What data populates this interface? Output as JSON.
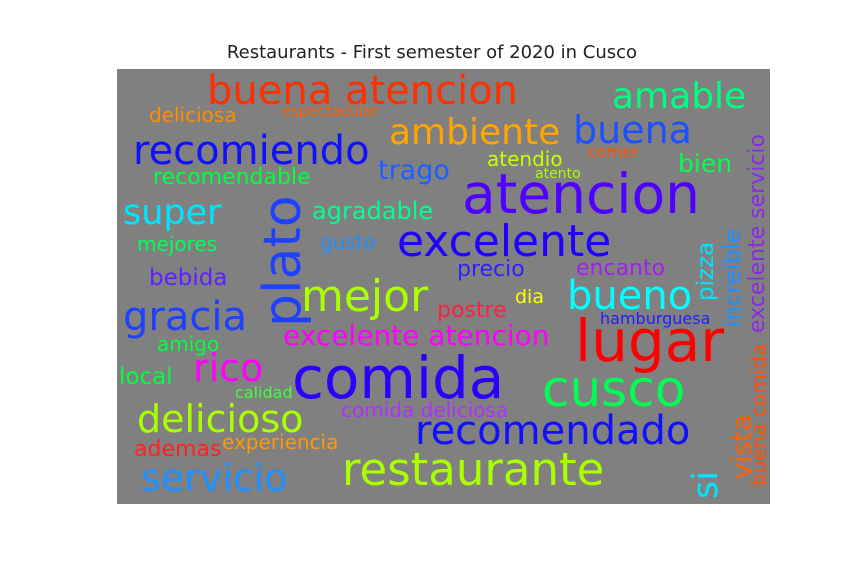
{
  "title": "Restaurants - First semester of 2020 in Cusco",
  "cloud": {
    "background": "#808080",
    "words": [
      {
        "text": "buena atencion",
        "color": "#ff3000",
        "orientation": "horizontal"
      },
      {
        "text": "amable",
        "color": "#00ff80",
        "orientation": "horizontal"
      },
      {
        "text": "deliciosa",
        "color": "#ff8c00",
        "orientation": "horizontal"
      },
      {
        "text": "espectacular",
        "color": "#ff6000",
        "orientation": "horizontal"
      },
      {
        "text": "ambiente",
        "color": "#ffa500",
        "orientation": "horizontal"
      },
      {
        "text": "buena",
        "color": "#1e50ff",
        "orientation": "horizontal"
      },
      {
        "text": "recomiendo",
        "color": "#1010ff",
        "orientation": "horizontal"
      },
      {
        "text": "atendio",
        "color": "#c8ff00",
        "orientation": "horizontal"
      },
      {
        "text": "comer",
        "color": "#ff5000",
        "orientation": "horizontal"
      },
      {
        "text": "bien",
        "color": "#00ff50",
        "orientation": "horizontal"
      },
      {
        "text": "recomendable",
        "color": "#00ff40",
        "orientation": "horizontal"
      },
      {
        "text": "trago",
        "color": "#1e60ff",
        "orientation": "horizontal"
      },
      {
        "text": "atento",
        "color": "#aaff00",
        "orientation": "horizontal"
      },
      {
        "text": "atencion",
        "color": "#5000ff",
        "orientation": "horizontal"
      },
      {
        "text": "super",
        "color": "#00e5ff",
        "orientation": "horizontal"
      },
      {
        "text": "plato",
        "color": "#1e40ff",
        "orientation": "vertical"
      },
      {
        "text": "agradable",
        "color": "#00ff90",
        "orientation": "horizontal"
      },
      {
        "text": "mejores",
        "color": "#00ff60",
        "orientation": "horizontal"
      },
      {
        "text": "gusto",
        "color": "#1e90ff",
        "orientation": "horizontal"
      },
      {
        "text": "excelente",
        "color": "#2000ff",
        "orientation": "horizontal"
      },
      {
        "text": "bebida",
        "color": "#6020ff",
        "orientation": "horizontal"
      },
      {
        "text": "precio",
        "color": "#3020ff",
        "orientation": "horizontal"
      },
      {
        "text": "encanto",
        "color": "#a020f0",
        "orientation": "horizontal"
      },
      {
        "text": "pizza",
        "color": "#00e5ff",
        "orientation": "vertical"
      },
      {
        "text": "increible",
        "color": "#1e90ff",
        "orientation": "vertical"
      },
      {
        "text": "excelente servicio",
        "color": "#8a2be2",
        "orientation": "vertical"
      },
      {
        "text": "mejor",
        "color": "#aaff00",
        "orientation": "horizontal"
      },
      {
        "text": "gracia",
        "color": "#1e40ff",
        "orientation": "horizontal"
      },
      {
        "text": "dia",
        "color": "#ffff00",
        "orientation": "horizontal"
      },
      {
        "text": "bueno",
        "color": "#00ffff",
        "orientation": "horizontal"
      },
      {
        "text": "postre",
        "color": "#ff2040",
        "orientation": "horizontal"
      },
      {
        "text": "hamburguesa",
        "color": "#2020ff",
        "orientation": "horizontal"
      },
      {
        "text": "amigo",
        "color": "#00ff40",
        "orientation": "horizontal"
      },
      {
        "text": "excelente atencion",
        "color": "#ff00ff",
        "orientation": "horizontal"
      },
      {
        "text": "lugar",
        "color": "#ff0000",
        "orientation": "horizontal"
      },
      {
        "text": "rico",
        "color": "#ff00ff",
        "orientation": "horizontal"
      },
      {
        "text": "local",
        "color": "#00ff40",
        "orientation": "horizontal"
      },
      {
        "text": "calidad",
        "color": "#40ff40",
        "orientation": "horizontal"
      },
      {
        "text": "comida",
        "color": "#2a00ff",
        "orientation": "horizontal"
      },
      {
        "text": "cusco",
        "color": "#00ff50",
        "orientation": "horizontal"
      },
      {
        "text": "delicioso",
        "color": "#aaff00",
        "orientation": "horizontal"
      },
      {
        "text": "comida deliciosa",
        "color": "#b030ff",
        "orientation": "horizontal"
      },
      {
        "text": "recomendado",
        "color": "#1010ff",
        "orientation": "horizontal"
      },
      {
        "text": "vista",
        "color": "#ff6000",
        "orientation": "vertical"
      },
      {
        "text": "buena comida",
        "color": "#ff5000",
        "orientation": "vertical"
      },
      {
        "text": "ademas",
        "color": "#ff2020",
        "orientation": "horizontal"
      },
      {
        "text": "experiencia",
        "color": "#ff9900",
        "orientation": "horizontal"
      },
      {
        "text": "servicio",
        "color": "#1e90ff",
        "orientation": "horizontal"
      },
      {
        "text": "restaurante",
        "color": "#aaff00",
        "orientation": "horizontal"
      },
      {
        "text": "si",
        "color": "#00e5ff",
        "orientation": "vertical"
      }
    ]
  }
}
